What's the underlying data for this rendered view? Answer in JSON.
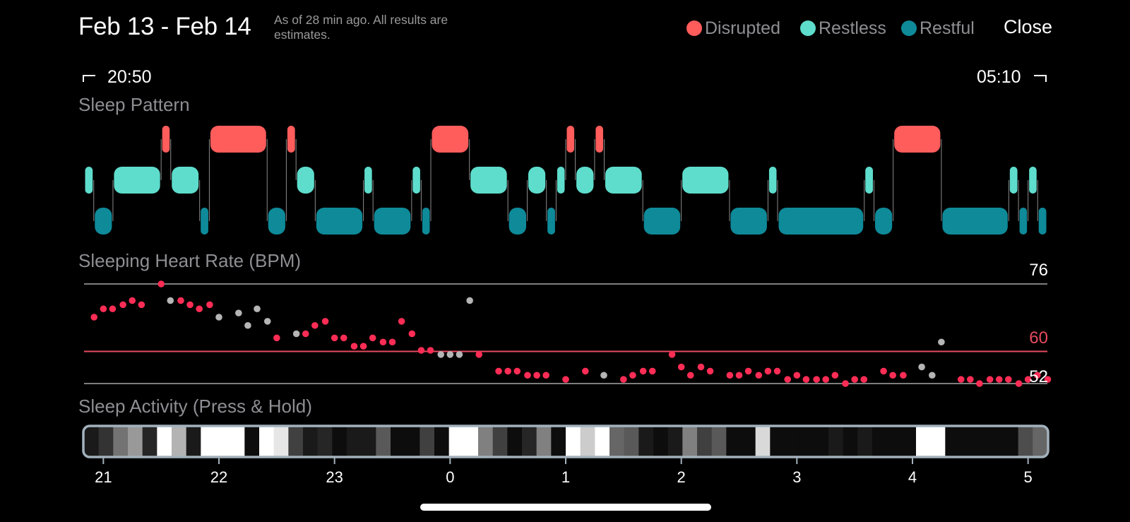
{
  "header": {
    "title": "Feb 13 - Feb 14",
    "note": "As of 28 min ago. All results are estimates.",
    "legend": [
      {
        "label": "Disrupted",
        "color": "#ff5c5c"
      },
      {
        "label": "Restless",
        "color": "#5eddcc"
      },
      {
        "label": "Restful",
        "color": "#0e8a99"
      }
    ],
    "close_label": "Close"
  },
  "range": {
    "start": "20:50",
    "end": "05:10"
  },
  "sections": {
    "pattern": "Sleep Pattern",
    "heart": "Sleeping Heart Rate (BPM)",
    "activity": "Sleep Activity (Press & Hold)"
  },
  "sleep_pattern": {
    "levels": [
      "Disrupted",
      "Restless",
      "Restful"
    ],
    "segments": [
      [
        20.833,
        20.917,
        "Restless"
      ],
      [
        20.917,
        21.083,
        "Restful"
      ],
      [
        21.083,
        21.5,
        "Restless"
      ],
      [
        21.5,
        21.583,
        "Disrupted"
      ],
      [
        21.583,
        21.833,
        "Restless"
      ],
      [
        21.833,
        21.917,
        "Restful"
      ],
      [
        21.917,
        22.417,
        "Disrupted"
      ],
      [
        22.417,
        22.583,
        "Restful"
      ],
      [
        22.583,
        22.667,
        "Disrupted"
      ],
      [
        22.667,
        22.833,
        "Restless"
      ],
      [
        22.833,
        23.25,
        "Restful"
      ],
      [
        23.25,
        23.333,
        "Restless"
      ],
      [
        23.333,
        23.667,
        "Restful"
      ],
      [
        23.667,
        23.75,
        "Restless"
      ],
      [
        23.75,
        23.833,
        "Restful"
      ],
      [
        23.833,
        24.167,
        "Disrupted"
      ],
      [
        24.167,
        24.5,
        "Restless"
      ],
      [
        24.5,
        24.667,
        "Restful"
      ],
      [
        24.667,
        24.833,
        "Restless"
      ],
      [
        24.833,
        24.917,
        "Restful"
      ],
      [
        24.917,
        25.0,
        "Restless"
      ],
      [
        25.0,
        25.083,
        "Disrupted"
      ],
      [
        25.083,
        25.25,
        "Restless"
      ],
      [
        25.25,
        25.333,
        "Disrupted"
      ],
      [
        25.333,
        25.667,
        "Restless"
      ],
      [
        25.667,
        26.0,
        "Restful"
      ],
      [
        26.0,
        26.417,
        "Restless"
      ],
      [
        26.417,
        26.75,
        "Restful"
      ],
      [
        26.75,
        26.833,
        "Restless"
      ],
      [
        26.833,
        27.583,
        "Restful"
      ],
      [
        27.583,
        27.667,
        "Restless"
      ],
      [
        27.667,
        27.833,
        "Restful"
      ],
      [
        27.833,
        28.25,
        "Disrupted"
      ],
      [
        28.25,
        28.833,
        "Restful"
      ],
      [
        28.833,
        28.917,
        "Restless"
      ],
      [
        28.917,
        29.0,
        "Restful"
      ],
      [
        29.0,
        29.083,
        "Restless"
      ],
      [
        29.083,
        29.167,
        "Restful"
      ]
    ]
  },
  "heart_rate": {
    "max_label": "76",
    "avg_label": "60",
    "min_label": "52",
    "max": 76,
    "avg": 60,
    "min": 52,
    "points": [
      [
        20.92,
        68,
        "r"
      ],
      [
        21.0,
        70,
        "r"
      ],
      [
        21.08,
        70,
        "r"
      ],
      [
        21.17,
        71,
        "r"
      ],
      [
        21.25,
        72,
        "r"
      ],
      [
        21.33,
        71,
        "r"
      ],
      [
        21.5,
        76,
        "r"
      ],
      [
        21.58,
        72,
        "g"
      ],
      [
        21.67,
        72,
        "r"
      ],
      [
        21.75,
        71,
        "r"
      ],
      [
        21.83,
        70,
        "r"
      ],
      [
        21.92,
        71,
        "r"
      ],
      [
        22.0,
        68,
        "g"
      ],
      [
        22.17,
        69,
        "g"
      ],
      [
        22.25,
        66,
        "g"
      ],
      [
        22.33,
        70,
        "g"
      ],
      [
        22.42,
        67,
        "g"
      ],
      [
        22.5,
        63,
        "r"
      ],
      [
        22.67,
        64,
        "g"
      ],
      [
        22.75,
        64,
        "r"
      ],
      [
        22.83,
        66,
        "r"
      ],
      [
        22.92,
        67,
        "r"
      ],
      [
        23.0,
        63,
        "r"
      ],
      [
        23.08,
        63,
        "r"
      ],
      [
        23.17,
        61,
        "r"
      ],
      [
        23.25,
        61,
        "r"
      ],
      [
        23.33,
        63,
        "r"
      ],
      [
        23.42,
        62,
        "r"
      ],
      [
        23.5,
        62,
        "r"
      ],
      [
        23.58,
        67,
        "r"
      ],
      [
        23.67,
        64,
        "r"
      ],
      [
        23.75,
        60,
        "r"
      ],
      [
        23.83,
        60,
        "r"
      ],
      [
        23.92,
        59,
        "g"
      ],
      [
        24.0,
        59,
        "g"
      ],
      [
        24.08,
        59,
        "g"
      ],
      [
        24.17,
        72,
        "g"
      ],
      [
        24.25,
        59,
        "r"
      ],
      [
        24.42,
        55,
        "r"
      ],
      [
        24.5,
        55,
        "r"
      ],
      [
        24.58,
        55,
        "r"
      ],
      [
        24.67,
        54,
        "r"
      ],
      [
        24.75,
        54,
        "r"
      ],
      [
        24.83,
        54,
        "r"
      ],
      [
        25.0,
        53,
        "r"
      ],
      [
        25.17,
        55,
        "r"
      ],
      [
        25.33,
        54,
        "g"
      ],
      [
        25.5,
        53,
        "r"
      ],
      [
        25.58,
        54,
        "r"
      ],
      [
        25.67,
        55,
        "r"
      ],
      [
        25.75,
        55,
        "r"
      ],
      [
        25.92,
        59,
        "r"
      ],
      [
        26.0,
        56,
        "r"
      ],
      [
        26.08,
        54,
        "r"
      ],
      [
        26.17,
        56,
        "r"
      ],
      [
        26.25,
        55,
        "r"
      ],
      [
        26.42,
        54,
        "r"
      ],
      [
        26.5,
        54,
        "r"
      ],
      [
        26.58,
        55,
        "r"
      ],
      [
        26.67,
        54,
        "r"
      ],
      [
        26.75,
        55,
        "r"
      ],
      [
        26.83,
        55,
        "r"
      ],
      [
        26.92,
        53,
        "r"
      ],
      [
        27.0,
        54,
        "r"
      ],
      [
        27.08,
        53,
        "r"
      ],
      [
        27.17,
        53,
        "r"
      ],
      [
        27.25,
        53,
        "r"
      ],
      [
        27.33,
        54,
        "r"
      ],
      [
        27.42,
        52,
        "r"
      ],
      [
        27.5,
        53,
        "r"
      ],
      [
        27.58,
        53,
        "r"
      ],
      [
        27.75,
        55,
        "r"
      ],
      [
        27.83,
        54,
        "r"
      ],
      [
        27.92,
        54,
        "r"
      ],
      [
        28.08,
        56,
        "g"
      ],
      [
        28.17,
        54,
        "g"
      ],
      [
        28.25,
        62,
        "g"
      ],
      [
        28.42,
        53,
        "r"
      ],
      [
        28.5,
        53,
        "r"
      ],
      [
        28.58,
        52,
        "r"
      ],
      [
        28.67,
        53,
        "r"
      ],
      [
        28.75,
        53,
        "r"
      ],
      [
        28.83,
        53,
        "r"
      ],
      [
        28.92,
        52,
        "r"
      ],
      [
        29.0,
        53,
        "r"
      ],
      [
        29.08,
        54,
        "r"
      ],
      [
        29.17,
        53,
        "r"
      ]
    ]
  },
  "activity": {
    "intensity": [
      0.1,
      0.2,
      0.45,
      0.6,
      0.15,
      1,
      0.7,
      0.1,
      1,
      1,
      1,
      0.05,
      1,
      0.9,
      0.25,
      0.1,
      0.15,
      0.05,
      0.1,
      0.1,
      0.35,
      0.05,
      0.05,
      0.25,
      0.05,
      1,
      1,
      0.5,
      0.25,
      0.05,
      0.15,
      0.5,
      0.05,
      1,
      0.8,
      1,
      0.4,
      0.35,
      0.1,
      0.05,
      0.1,
      0.5,
      0.25,
      0.35,
      0.05,
      0.05,
      0.85,
      0.05,
      0.05,
      0.05,
      0.05,
      0.1,
      0.05,
      0.1,
      0.05,
      0.05,
      0.05,
      1,
      1,
      0.05,
      0.05,
      0.05,
      0.05,
      0.05,
      0.3,
      0.4
    ]
  },
  "axis": {
    "ticks": [
      {
        "label": "21",
        "value": 21
      },
      {
        "label": "22",
        "value": 22
      },
      {
        "label": "23",
        "value": 23
      },
      {
        "label": "0",
        "value": 24
      },
      {
        "label": "1",
        "value": 25
      },
      {
        "label": "2",
        "value": 26
      },
      {
        "label": "3",
        "value": 27
      },
      {
        "label": "4",
        "value": 28
      },
      {
        "label": "5",
        "value": 29
      }
    ]
  },
  "colors": {
    "disrupted": "#ff5c5c",
    "restless": "#5eddcc",
    "restful": "#0e8a99",
    "hr_dot": "#ff2d55",
    "hr_dot_gray": "#b5b5b5",
    "avg_line": "#e84a5f"
  }
}
